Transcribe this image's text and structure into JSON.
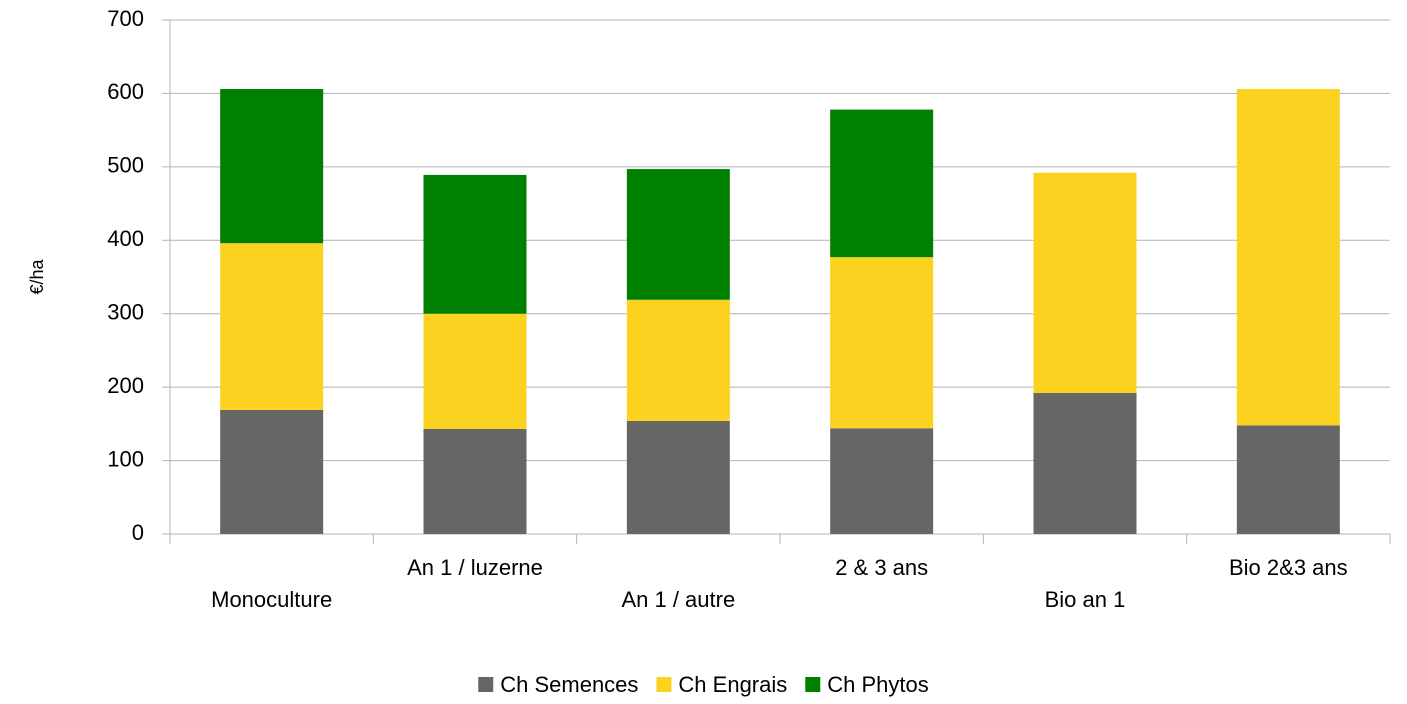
{
  "chart_data": {
    "type": "stacked_bar",
    "y_label": "€/ha",
    "categories": [
      "Monoculture",
      "An 1 / luzerne",
      "An 1 / autre",
      "2 & 3 ans",
      "Bio an 1",
      "Bio 2&3 ans"
    ],
    "series": [
      {
        "name": "Ch Semences",
        "color": "#666666",
        "values": [
          169,
          143,
          154,
          144,
          192,
          148
        ]
      },
      {
        "name": "Ch Engrais",
        "color": "#fcd221",
        "values": [
          227,
          157,
          165,
          233,
          300,
          458
        ]
      },
      {
        "name": "Ch Phytos",
        "color": "#008000",
        "values": [
          210,
          189,
          178,
          201,
          0,
          0
        ]
      }
    ],
    "ylim": [
      0,
      700
    ],
    "yticks": [
      0,
      100,
      200,
      300,
      400,
      500,
      600,
      700
    ],
    "grid": true
  }
}
